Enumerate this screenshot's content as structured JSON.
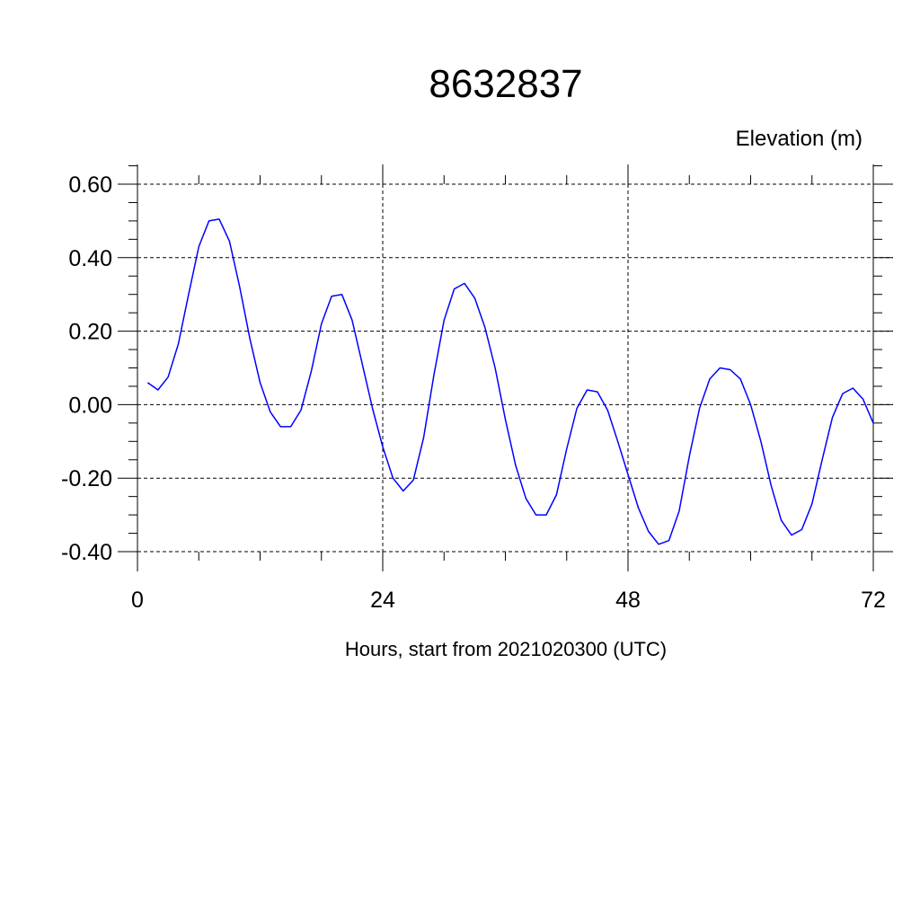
{
  "chart_data": {
    "type": "line",
    "title": "8632837",
    "ylabel": "Elevation (m)",
    "xlabel": "Hours, start from 2021020300 (UTC)",
    "xlim": [
      0,
      72
    ],
    "ylim": [
      -0.4,
      0.6
    ],
    "x_ticks": [
      0,
      24,
      48,
      72
    ],
    "x_tick_labels": [
      "0",
      "24",
      "48",
      "72"
    ],
    "y_ticks": [
      0.6,
      0.4,
      0.2,
      0.0,
      -0.2,
      -0.4
    ],
    "y_tick_labels": [
      "0.60",
      "0.40",
      "0.20",
      "0.00",
      "-0.20",
      "-0.40"
    ],
    "grid": true,
    "line_color": "#0000ff",
    "series": [
      {
        "x": [
          1,
          2,
          3,
          4,
          5,
          6,
          7,
          8,
          9,
          10,
          11,
          12,
          13,
          14,
          15,
          16,
          17,
          18,
          19,
          20,
          21,
          22,
          23,
          24,
          25,
          26,
          27,
          28,
          29,
          30,
          31,
          32,
          33,
          34,
          35,
          36,
          37,
          38,
          39,
          40,
          41,
          42,
          43,
          44,
          45,
          46,
          47,
          48,
          49,
          50,
          51,
          52,
          53,
          54,
          55,
          56,
          57,
          58,
          59,
          60,
          61,
          62,
          63,
          64,
          65,
          66,
          67,
          68,
          69,
          70,
          71,
          72
        ],
        "values": [
          0.06,
          0.04,
          0.075,
          0.165,
          0.3,
          0.43,
          0.5,
          0.505,
          0.445,
          0.32,
          0.18,
          0.06,
          -0.02,
          -0.06,
          -0.06,
          -0.015,
          0.09,
          0.22,
          0.295,
          0.3,
          0.23,
          0.11,
          -0.01,
          -0.115,
          -0.2,
          -0.235,
          -0.205,
          -0.09,
          0.08,
          0.23,
          0.315,
          0.33,
          0.29,
          0.21,
          0.1,
          -0.04,
          -0.165,
          -0.255,
          -0.3,
          -0.3,
          -0.245,
          -0.12,
          -0.01,
          0.04,
          0.035,
          -0.015,
          -0.1,
          -0.19,
          -0.28,
          -0.345,
          -0.38,
          -0.37,
          -0.29,
          -0.14,
          -0.01,
          0.07,
          0.1,
          0.095,
          0.07,
          0.0,
          -0.1,
          -0.22,
          -0.315,
          -0.355,
          -0.34,
          -0.27,
          -0.15,
          -0.035,
          0.03,
          0.045,
          0.015,
          -0.05
        ]
      }
    ]
  }
}
